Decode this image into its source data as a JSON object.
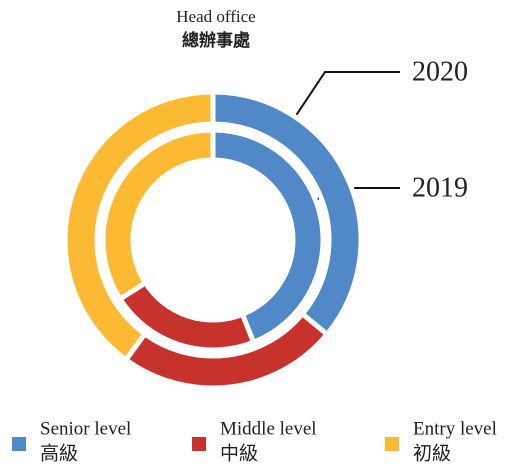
{
  "chart_data": {
    "type": "donut",
    "title": "Head office",
    "subtitle": "總辦事處",
    "categories": [
      "Senior level",
      "Middle level",
      "Entry level"
    ],
    "categories_zh": [
      "高級",
      "中級",
      "初級"
    ],
    "colors": [
      "#5088c8",
      "#c8322d",
      "#fbb934"
    ],
    "series": [
      {
        "name": "2020",
        "values": [
          36,
          24,
          40
        ]
      },
      {
        "name": "2019",
        "values": [
          44,
          22,
          34
        ]
      }
    ],
    "legend": "bottom"
  }
}
